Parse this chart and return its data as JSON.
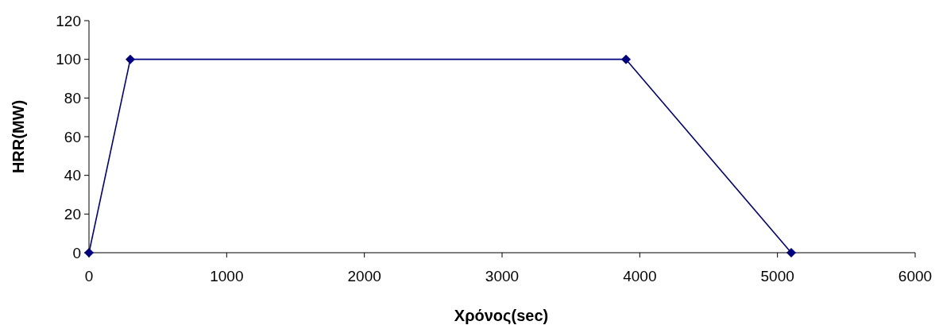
{
  "chart_data": {
    "type": "line",
    "xlabel": "Χρόνος(sec)",
    "ylabel": "HRR(MW)",
    "x": [
      0,
      300,
      3900,
      5100
    ],
    "series": [
      {
        "color": "#000080",
        "values": [
          0,
          100,
          100,
          0
        ]
      }
    ],
    "xlim": [
      0,
      6000
    ],
    "xticks": [
      0,
      1000,
      2000,
      3000,
      4000,
      5000,
      6000
    ],
    "ylim": [
      0,
      120
    ],
    "yticks": [
      0,
      20,
      40,
      60,
      80,
      100,
      120
    ],
    "marker": "diamond",
    "line_style": "solid"
  }
}
